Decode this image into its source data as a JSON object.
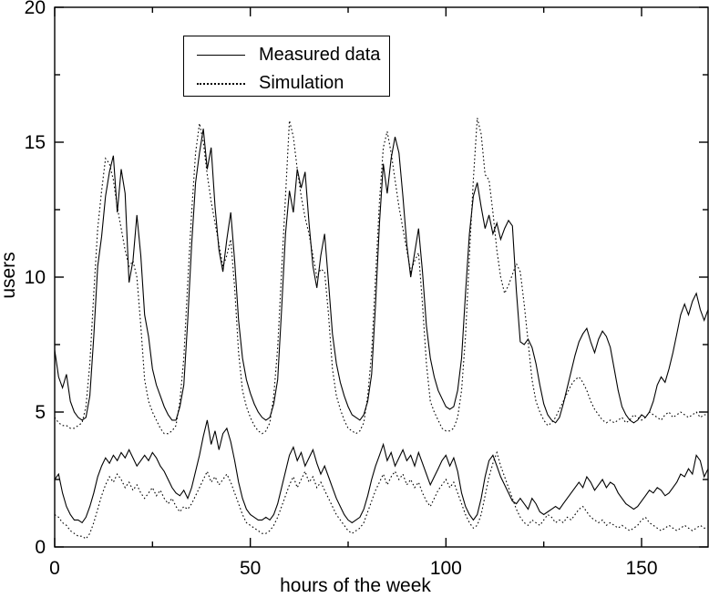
{
  "figure": {
    "background": "#ffffff",
    "line_color": "#000000",
    "legend_items": [
      {
        "label": "Measured data",
        "style": "solid"
      },
      {
        "label": "Simulation",
        "style": "dotted"
      }
    ]
  },
  "chart_data": {
    "type": "line",
    "title": "",
    "xlabel": "hours of the week",
    "ylabel": "users",
    "xlim": [
      0,
      167
    ],
    "ylim": [
      0,
      20
    ],
    "x_ticks": [
      0,
      50,
      100,
      150
    ],
    "x_minor_ticks": [
      25,
      75,
      125
    ],
    "y_ticks": [
      0,
      5,
      10,
      15,
      20
    ],
    "y_minor_ticks": [
      2.5,
      7.5,
      12.5,
      17.5
    ],
    "grid": false,
    "legend_position": "upper left inside",
    "x_unit": "hour index, one point per hour",
    "x_start": 0,
    "x_step": 1,
    "n_points": 168,
    "series": [
      {
        "name": "measured-upper",
        "legend": "Measured data",
        "style": "solid",
        "color": "#000000",
        "values": [
          7.3,
          6.3,
          5.9,
          6.4,
          5.4,
          5.0,
          4.8,
          4.7,
          4.8,
          5.6,
          7.8,
          10.4,
          11.5,
          13.0,
          13.9,
          14.5,
          12.4,
          14.0,
          13.1,
          9.8,
          10.6,
          12.3,
          10.8,
          8.6,
          7.8,
          6.6,
          6.0,
          5.6,
          5.2,
          4.9,
          4.7,
          4.7,
          5.2,
          6.0,
          8.4,
          11.2,
          13.5,
          14.6,
          15.5,
          14.0,
          14.8,
          12.6,
          11.0,
          10.2,
          11.4,
          12.4,
          10.6,
          8.4,
          7.0,
          6.2,
          5.7,
          5.3,
          5.0,
          4.8,
          4.7,
          4.8,
          5.3,
          6.2,
          8.8,
          11.6,
          13.2,
          12.4,
          14.0,
          13.3,
          13.9,
          12.0,
          10.4,
          9.6,
          10.8,
          11.6,
          9.8,
          7.9,
          6.8,
          6.1,
          5.6,
          5.2,
          4.9,
          4.8,
          4.7,
          4.9,
          5.4,
          6.4,
          9.0,
          12.0,
          14.2,
          13.1,
          14.4,
          15.2,
          14.6,
          13.0,
          11.2,
          10.0,
          10.9,
          11.8,
          10.2,
          8.2,
          7.0,
          6.3,
          5.8,
          5.5,
          5.2,
          5.1,
          5.2,
          5.8,
          7.0,
          9.4,
          11.6,
          13.0,
          13.5,
          12.6,
          11.8,
          12.3,
          11.6,
          12.0,
          11.4,
          11.8,
          12.1,
          11.9,
          9.5,
          7.6,
          7.5,
          7.7,
          7.4,
          6.8,
          6.0,
          5.3,
          4.9,
          4.7,
          4.6,
          4.8,
          5.3,
          5.9,
          6.5,
          7.1,
          7.6,
          7.9,
          8.1,
          7.6,
          7.2,
          7.7,
          8.0,
          7.8,
          7.4,
          6.6,
          5.8,
          5.2,
          4.9,
          4.7,
          4.6,
          4.7,
          4.9,
          4.8,
          5.0,
          5.4,
          6.0,
          6.3,
          6.1,
          6.6,
          7.2,
          7.9,
          8.6,
          9.0,
          8.6,
          9.1,
          9.4,
          8.8,
          8.4,
          8.8
        ]
      },
      {
        "name": "simulation-upper",
        "legend": "Simulation",
        "style": "dotted",
        "color": "#000000",
        "values": [
          4.8,
          4.6,
          4.5,
          4.5,
          4.4,
          4.4,
          4.5,
          4.6,
          5.2,
          6.8,
          9.4,
          11.8,
          13.2,
          14.4,
          14.2,
          13.6,
          12.6,
          11.8,
          11.0,
          10.4,
          10.6,
          10.0,
          8.2,
          6.2,
          5.4,
          5.0,
          4.7,
          4.4,
          4.2,
          4.2,
          4.3,
          4.5,
          5.4,
          7.0,
          9.8,
          12.4,
          14.6,
          15.7,
          15.0,
          13.8,
          12.8,
          12.0,
          11.2,
          10.4,
          10.8,
          11.4,
          9.6,
          7.2,
          5.8,
          5.2,
          4.8,
          4.5,
          4.3,
          4.2,
          4.3,
          4.6,
          5.6,
          7.4,
          10.2,
          13.0,
          15.8,
          15.2,
          14.0,
          13.0,
          12.2,
          11.6,
          10.8,
          10.0,
          10.3,
          10.2,
          8.6,
          6.6,
          5.6,
          5.1,
          4.7,
          4.4,
          4.3,
          4.2,
          4.3,
          4.6,
          5.6,
          7.2,
          10.0,
          12.8,
          14.8,
          15.4,
          14.6,
          13.6,
          12.6,
          11.8,
          11.0,
          10.2,
          10.6,
          10.9,
          9.0,
          6.8,
          5.4,
          5.0,
          4.7,
          4.4,
          4.3,
          4.3,
          4.4,
          4.8,
          5.8,
          7.8,
          10.8,
          13.6,
          15.9,
          15.3,
          13.8,
          13.6,
          12.4,
          11.0,
          10.0,
          9.4,
          9.7,
          10.1,
          10.5,
          10.2,
          9.0,
          7.6,
          6.2,
          5.4,
          5.0,
          4.7,
          4.5,
          4.6,
          4.8,
          5.1,
          5.4,
          5.7,
          6.0,
          6.2,
          6.3,
          6.1,
          5.8,
          5.4,
          5.1,
          4.9,
          4.7,
          4.6,
          4.7,
          4.6,
          4.7,
          4.8,
          4.6,
          4.7,
          4.9,
          4.8,
          4.7,
          4.8,
          5.0,
          4.9,
          4.8,
          4.7,
          4.9,
          5.0,
          4.8,
          4.9,
          5.0,
          4.9,
          4.8,
          4.9,
          5.0,
          4.8,
          4.9,
          4.9
        ]
      },
      {
        "name": "measured-lower",
        "legend": "Measured data",
        "style": "solid",
        "color": "#000000",
        "values": [
          2.5,
          2.7,
          2.0,
          1.5,
          1.2,
          1.0,
          1.0,
          0.9,
          1.1,
          1.5,
          2.0,
          2.6,
          3.0,
          3.3,
          3.1,
          3.4,
          3.2,
          3.5,
          3.3,
          3.6,
          3.3,
          3.0,
          3.2,
          3.4,
          3.2,
          3.5,
          3.3,
          3.0,
          2.8,
          2.5,
          2.2,
          2.0,
          1.9,
          2.1,
          1.8,
          2.2,
          2.8,
          3.4,
          4.1,
          4.7,
          3.8,
          4.3,
          3.6,
          4.2,
          4.4,
          3.9,
          3.2,
          2.4,
          1.8,
          1.4,
          1.2,
          1.1,
          1.0,
          1.0,
          1.1,
          1.0,
          1.2,
          1.6,
          2.2,
          2.8,
          3.4,
          3.7,
          3.2,
          3.5,
          3.0,
          3.3,
          3.6,
          3.1,
          2.7,
          3.0,
          2.6,
          2.2,
          1.8,
          1.5,
          1.2,
          1.0,
          0.9,
          1.0,
          1.1,
          1.4,
          1.9,
          2.5,
          3.0,
          3.4,
          3.8,
          3.2,
          3.5,
          3.0,
          3.3,
          3.6,
          3.2,
          3.4,
          3.0,
          3.5,
          3.1,
          2.7,
          2.3,
          2.6,
          2.9,
          3.2,
          3.4,
          3.0,
          3.3,
          2.8,
          2.0,
          1.5,
          1.2,
          1.0,
          1.2,
          1.8,
          2.6,
          3.2,
          3.4,
          3.0,
          2.6,
          2.3,
          2.0,
          1.7,
          1.6,
          1.8,
          1.6,
          1.4,
          1.8,
          1.6,
          1.3,
          1.2,
          1.3,
          1.4,
          1.5,
          1.4,
          1.6,
          1.8,
          2.0,
          2.2,
          2.4,
          2.2,
          2.6,
          2.4,
          2.1,
          2.3,
          2.5,
          2.2,
          2.4,
          2.3,
          2.0,
          1.8,
          1.6,
          1.5,
          1.4,
          1.5,
          1.7,
          1.9,
          2.1,
          2.0,
          2.2,
          2.1,
          1.9,
          2.0,
          2.2,
          2.4,
          2.7,
          2.6,
          2.9,
          2.7,
          3.4,
          3.2,
          2.6,
          2.9
        ]
      },
      {
        "name": "simulation-lower",
        "legend": "Simulation",
        "style": "dotted",
        "color": "#000000",
        "values": [
          1.2,
          1.1,
          0.9,
          0.8,
          0.6,
          0.5,
          0.4,
          0.4,
          0.3,
          0.5,
          0.9,
          1.4,
          1.9,
          2.3,
          2.6,
          2.4,
          2.7,
          2.5,
          2.2,
          2.4,
          2.1,
          2.3,
          2.0,
          1.8,
          2.0,
          2.2,
          1.9,
          2.1,
          1.8,
          1.6,
          1.8,
          1.5,
          1.3,
          1.5,
          1.4,
          1.6,
          1.9,
          2.2,
          2.5,
          2.8,
          2.4,
          2.6,
          2.3,
          2.5,
          2.7,
          2.4,
          2.0,
          1.6,
          1.2,
          0.9,
          0.8,
          0.7,
          0.6,
          0.5,
          0.5,
          0.6,
          0.8,
          1.1,
          1.5,
          1.9,
          2.3,
          2.6,
          2.2,
          2.5,
          2.8,
          2.4,
          2.6,
          2.2,
          2.4,
          2.1,
          1.8,
          1.5,
          1.2,
          1.0,
          0.8,
          0.6,
          0.5,
          0.6,
          0.7,
          0.9,
          1.3,
          1.7,
          2.1,
          2.4,
          2.7,
          2.3,
          2.6,
          2.8,
          2.5,
          2.7,
          2.3,
          2.5,
          2.2,
          2.4,
          2.0,
          1.7,
          1.5,
          1.8,
          2.1,
          2.3,
          2.5,
          2.2,
          2.4,
          2.0,
          1.6,
          1.2,
          0.9,
          0.7,
          0.8,
          1.2,
          1.9,
          2.6,
          3.1,
          3.5,
          3.0,
          2.6,
          2.2,
          1.8,
          1.4,
          1.1,
          0.9,
          0.8,
          1.0,
          0.9,
          0.8,
          1.0,
          1.2,
          1.1,
          0.9,
          1.0,
          0.9,
          1.1,
          1.0,
          1.2,
          1.4,
          1.5,
          1.3,
          1.1,
          1.0,
          0.9,
          1.0,
          0.8,
          0.9,
          0.8,
          0.7,
          0.8,
          0.7,
          0.6,
          0.7,
          0.8,
          1.0,
          1.1,
          0.9,
          0.8,
          0.7,
          0.6,
          0.7,
          0.8,
          0.7,
          0.6,
          0.7,
          0.8,
          0.7,
          0.6,
          0.7,
          0.8,
          0.7,
          0.7
        ]
      }
    ]
  }
}
